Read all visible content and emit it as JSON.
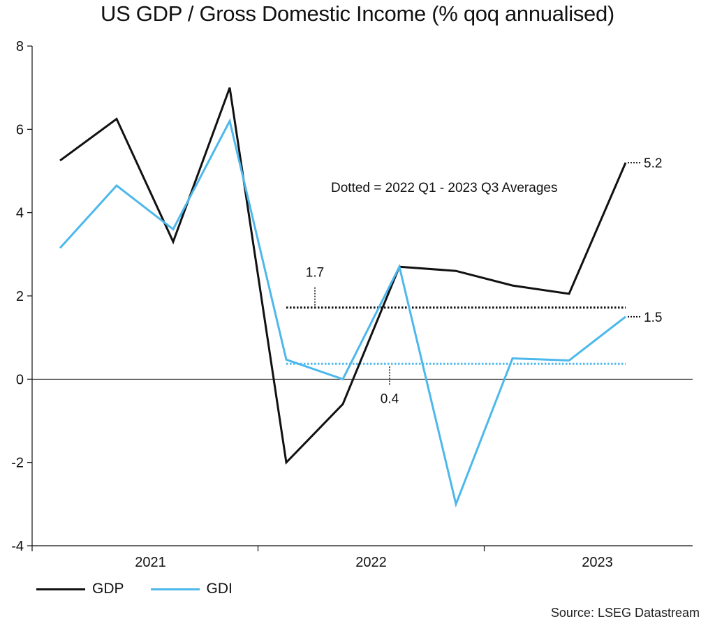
{
  "chart_data": {
    "type": "line",
    "title": "US GDP / Gross Domestic Income (% qoq annualised)",
    "x": [
      "2021 Q1",
      "2021 Q2",
      "2021 Q3",
      "2021 Q4",
      "2022 Q1",
      "2022 Q2",
      "2022 Q3",
      "2022 Q4",
      "2023 Q1",
      "2023 Q2",
      "2023 Q3"
    ],
    "year_labels": [
      "2021",
      "2022",
      "2023"
    ],
    "series": [
      {
        "name": "GDP",
        "color": "#111111",
        "values": [
          5.25,
          6.25,
          3.3,
          7.0,
          -2.0,
          -0.6,
          2.7,
          2.6,
          2.25,
          2.05,
          5.2
        ]
      },
      {
        "name": "GDI",
        "color": "#4db8ec",
        "values": [
          3.15,
          4.65,
          3.6,
          6.2,
          0.47,
          0.0,
          2.7,
          -3.0,
          0.5,
          0.45,
          1.5
        ]
      }
    ],
    "averages": [
      {
        "series": "GDP",
        "value": 1.72,
        "label": "1.7",
        "from": "2022 Q1",
        "to": "2023 Q3"
      },
      {
        "series": "GDI",
        "value": 0.37,
        "label": "0.4",
        "from": "2022 Q1",
        "to": "2023 Q3"
      }
    ],
    "end_labels": [
      {
        "series": "GDP",
        "label": "5.2"
      },
      {
        "series": "GDI",
        "label": "1.5"
      }
    ],
    "annotation": "Dotted = 2022 Q1 - 2023 Q3 Averages",
    "ylim": [
      -4,
      8
    ],
    "yticks": [
      -4,
      -2,
      0,
      2,
      4,
      6,
      8
    ],
    "grid": false,
    "legend_position": "bottom-left",
    "xlabel": "",
    "ylabel": ""
  },
  "legend": {
    "gdp": "GDP",
    "gdi": "GDI"
  },
  "source": "Source: LSEG Datastream"
}
